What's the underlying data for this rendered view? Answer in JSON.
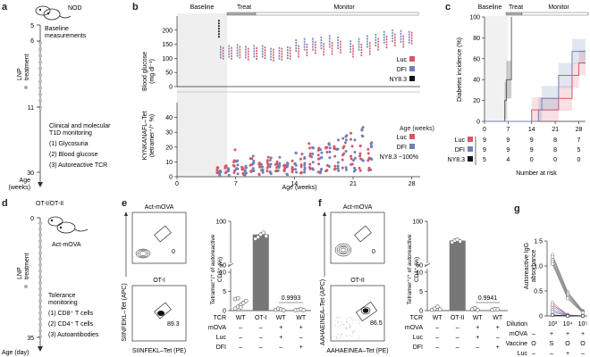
{
  "panel_labels": {
    "a": "a",
    "b": "b",
    "c": "c",
    "d": "d",
    "e": "e",
    "f": "f",
    "g": "g"
  },
  "panel_a": {
    "mouse_label": "NOD",
    "ticks": [
      "5",
      "6",
      "11",
      "30"
    ],
    "axis_label": "Age\n(weeks)",
    "axis_label_line1": "Age",
    "axis_label_line2": "(weeks)",
    "legend_label_line1": "LNP",
    "legend_label_line2": "treatment",
    "step1_line1": "Baseline",
    "step1_line2": "measurements",
    "step2_line1": "Clinical and molecular",
    "step2_line2": "T1D monitoring",
    "items": [
      "(1) Glycosuria",
      "(2) Blood glucose",
      "(3) Autoreactive TCR"
    ]
  },
  "panel_d": {
    "mouse_top_label": "OT-I/OT-II",
    "mouse_label": "Act-mOVA",
    "ticks": [
      "0",
      "35"
    ],
    "axis_label": "Age (day)",
    "legend_label_line1": "LNP",
    "legend_label_line2": "treatment",
    "step_line1": "Tolerance",
    "step_line2": "monitoring",
    "items": [
      "(1) CD8⁺ T cells",
      "(2) CD4⁺ T cells",
      "(3) Autoantibodies"
    ]
  },
  "phases": {
    "baseline": "Baseline",
    "treat": "Treat",
    "monitor": "Monitor"
  },
  "colors": {
    "luc": "#d9546a",
    "dfi": "#6f80b4",
    "ny83": "#111111",
    "bar": "#777777",
    "baseline_bg": "#efefef"
  },
  "chart_data": [
    {
      "id": "b_top",
      "type": "scatter",
      "title": "",
      "ylabel": "Blood glucose (mg dl⁻¹)",
      "ylabel_line1": "Blood glucose",
      "ylabel_line2": "(mg dl⁻¹)",
      "ylim": [
        0,
        250
      ],
      "yticks": [
        "0",
        "50",
        "100",
        "150",
        "200"
      ],
      "xlim": [
        0,
        29
      ],
      "legend": [
        "Luc",
        "DFI",
        "NY8.3"
      ],
      "legend_position": "right",
      "series": [
        {
          "name": "NY8.3",
          "x": [
            5
          ],
          "y": [
            205
          ]
        },
        {
          "name": "Luc",
          "x": [
            5.5,
            6.5,
            7.5,
            8.5,
            9.5,
            10.5,
            11.5,
            12.5,
            13.5,
            14.5,
            15.5,
            16.5,
            17.5,
            18.5,
            19.5,
            21,
            22,
            23,
            24,
            25,
            26,
            27,
            28
          ],
          "y": [
            118,
            118,
            122,
            115,
            117,
            120,
            112,
            115,
            118,
            125,
            130,
            138,
            132,
            135,
            140,
            125,
            130,
            135,
            150,
            158,
            165,
            160,
            172
          ]
        },
        {
          "name": "DFI",
          "x": [
            5.2,
            6.2,
            7.2,
            8.2,
            9.2,
            10.2,
            11.2,
            12.2,
            13.2,
            14.2,
            15.2,
            16.2,
            17.2,
            18.2,
            19.2,
            20.7,
            21.7,
            22.7,
            23.7,
            24.7,
            25.7,
            26.7,
            27.7
          ],
          "y": [
            122,
            125,
            128,
            122,
            125,
            125,
            115,
            118,
            120,
            145,
            150,
            150,
            155,
            160,
            155,
            142,
            150,
            160,
            165,
            175,
            180,
            178,
            175
          ]
        }
      ]
    },
    {
      "id": "b_bottom",
      "type": "scatter",
      "ylabel": "KYNKANAFL–Tet (tetramer⁺/⁺ %)",
      "ylabel_line1": "KYNKANAFL–Tet",
      "ylabel_line2": "(tetramer⁺/⁺ %)",
      "xlabel": "Age (weeks)",
      "ylim": [
        0,
        50
      ],
      "yticks": [
        "0",
        "10",
        "20",
        "30",
        "40"
      ],
      "xlim": [
        0,
        29
      ],
      "xticks": [
        "0",
        "7",
        "14",
        "21",
        "28"
      ],
      "legend": [
        "Luc",
        "DFI",
        "NY8.3 ~100%"
      ],
      "legend_position": "right",
      "series": [
        {
          "name": "Luc",
          "x": [
            5,
            6,
            7,
            8,
            9,
            10,
            11,
            12,
            13,
            14,
            15,
            16,
            17,
            18,
            19,
            20,
            21,
            22,
            23
          ],
          "y": [
            4,
            5,
            12,
            5,
            8,
            6,
            9,
            7,
            5,
            10,
            12,
            14,
            13,
            16,
            18,
            22,
            20,
            17,
            12
          ]
        },
        {
          "name": "DFI",
          "x": [
            5,
            6,
            7,
            8,
            9,
            10,
            11,
            12,
            13,
            14,
            15,
            16,
            17,
            18,
            19,
            20,
            21,
            22,
            23
          ],
          "y": [
            3,
            4,
            7,
            5,
            9,
            6,
            8,
            9,
            6,
            12,
            10,
            13,
            12,
            15,
            16,
            20,
            18,
            22,
            15
          ]
        }
      ]
    },
    {
      "id": "c",
      "type": "line",
      "title": "",
      "ylabel": "Diabetes incidence (%)",
      "xlabel": "Number at risk",
      "ylim": [
        0,
        100
      ],
      "yticks": [
        "0",
        "20",
        "40",
        "60",
        "80",
        "100"
      ],
      "xlim": [
        0,
        30
      ],
      "xticks": [
        "0",
        "7",
        "14",
        "21",
        "28"
      ],
      "risk_label": "Age (weeks)",
      "series": [
        {
          "name": "NY8.3",
          "x": [
            0,
            6,
            6,
            6.5,
            6.5,
            7,
            7,
            8,
            8
          ],
          "y": [
            0,
            0,
            20,
            20,
            40,
            40,
            40,
            40,
            100
          ]
        },
        {
          "name": "Luc",
          "x": [
            0,
            14,
            14,
            16,
            16,
            22,
            22,
            26,
            26,
            28,
            28,
            30
          ],
          "y": [
            0,
            0,
            11,
            11,
            11,
            11,
            22,
            22,
            44,
            44,
            56,
            56
          ]
        },
        {
          "name": "DFI",
          "x": [
            0,
            16,
            16,
            17,
            17,
            22,
            22,
            26,
            26,
            30
          ],
          "y": [
            0,
            0,
            11,
            11,
            22,
            22,
            44,
            44,
            67,
            67
          ]
        }
      ],
      "risk_table": {
        "timepoints": [
          "0",
          "7",
          "14",
          "21",
          "28"
        ],
        "rows": [
          {
            "name": "Luc",
            "values": [
              "9",
              "9",
              "9",
              "8",
              "7"
            ]
          },
          {
            "name": "DFI",
            "values": [
              "9",
              "9",
              "9",
              "8",
              "5"
            ]
          },
          {
            "name": "NY8.3",
            "values": [
              "5",
              "4",
              "0",
              "0",
              "0"
            ]
          }
        ]
      }
    },
    {
      "id": "e_bar",
      "type": "bar",
      "ylabel": "Tetramer⁺/⁺ of autoreactive CD8⁺ (%)",
      "ylabel_line1": "Tetramer⁺/⁺ of autoreactive",
      "ylabel_line2": "CD8⁺ (%)",
      "yticks": [
        "0",
        "5",
        "10",
        "50",
        "100"
      ],
      "categories": [
        "WT",
        "OT-I",
        "WT",
        "WT"
      ],
      "values": [
        1.5,
        85,
        0.3,
        0.2
      ],
      "points": [
        [
          0.5,
          1,
          1.5,
          2,
          2.5,
          3,
          3.2,
          0.8
        ],
        [
          80,
          82,
          85,
          87,
          83
        ],
        [
          0.2,
          0.5,
          0.3,
          0.1
        ],
        [
          0.1,
          0.2,
          0.3,
          0.1
        ]
      ],
      "pvalue": "0.9993",
      "conditions": {
        "labels": [
          "TCR",
          "mOVA",
          "Luc",
          "DFI"
        ],
        "rows": [
          [
            "WT",
            "OT-I",
            "WT",
            "WT"
          ],
          [
            "–",
            "–",
            "+",
            "+"
          ],
          [
            "–",
            "–",
            "+",
            "–"
          ],
          [
            "–",
            "–",
            "–",
            "+"
          ]
        ]
      }
    },
    {
      "id": "f_bar",
      "type": "bar",
      "ylabel": "Tetramer⁺/⁺ of autoreactive CD4⁺ (%)",
      "ylabel_line1": "Tetramer⁺/⁺ of autoreactive",
      "ylabel_line2": "CD4⁺ (%)",
      "yticks": [
        "0",
        "5",
        "10",
        "50",
        "100"
      ],
      "categories": [
        "WT",
        "OT-II",
        "WT",
        "WT"
      ],
      "values": [
        0.5,
        78,
        0.4,
        0.3
      ],
      "points": [
        [
          0.2,
          0.5,
          1,
          0.3
        ],
        [
          76,
          78,
          79,
          77
        ],
        [
          0.3,
          0.6,
          0.2
        ],
        [
          0.2,
          0.4,
          0.3
        ]
      ],
      "pvalue": "0.9941",
      "conditions": {
        "labels": [
          "TCR",
          "mOVA",
          "Luc",
          "DFI"
        ],
        "rows": [
          [
            "WT",
            "OT-II",
            "WT",
            "WT"
          ],
          [
            "–",
            "–",
            "+",
            "+"
          ],
          [
            "–",
            "–",
            "+",
            "–"
          ],
          [
            "–",
            "–",
            "–",
            "+"
          ]
        ]
      }
    },
    {
      "id": "g",
      "type": "line",
      "ylabel": "Autoreactive IgG absorbance",
      "ylabel_line1": "Autoreactive IgG",
      "ylabel_line2": "absorbance",
      "ylim": [
        0,
        1.5
      ],
      "yticks": [
        "0",
        "0.5",
        "1.0",
        "1.5"
      ],
      "xticks": [
        "10³",
        "10⁴",
        "10⁵"
      ],
      "xlabel": "Dilution",
      "series": [
        {
          "name": "S",
          "color": "#888888",
          "values": [
            [
              1.22,
              0.48,
              0.1
            ],
            [
              1.18,
              0.45,
              0.09
            ],
            [
              1.12,
              0.42,
              0.08
            ],
            [
              1.08,
              0.38,
              0.07
            ],
            [
              1.04,
              0.35,
              0.06
            ]
          ]
        },
        {
          "name": "O",
          "color": "#9b9bc9",
          "values": [
            [
              0.27,
              0.02,
              0.0
            ],
            [
              0.18,
              0.01,
              0.0
            ]
          ]
        },
        {
          "name": "Luc",
          "color": "#d9546a",
          "values": [
            [
              0.22,
              0.02,
              0.0
            ]
          ]
        },
        {
          "name": "DFI",
          "color": "#6f80b4",
          "values": [
            [
              0.12,
              0.01,
              0.0
            ],
            [
              0.08,
              0.0,
              0.0
            ]
          ]
        },
        {
          "name": "baseline",
          "color": "#111111",
          "values": [
            [
              0.02,
              0.0,
              0.0
            ]
          ]
        }
      ],
      "conditions": {
        "labels": [
          "Dilution",
          "mOVA",
          "Vaccine",
          "Luc",
          "DFI"
        ],
        "rows": [
          [
            "",
            "",
            "",
            ""
          ],
          [
            "–",
            "+",
            "+",
            "+"
          ],
          [
            "O",
            "S",
            "O",
            "O"
          ],
          [
            "–",
            "–",
            "+",
            "–"
          ],
          [
            "–",
            "–",
            "–",
            "+"
          ]
        ]
      }
    }
  ],
  "flow_e": {
    "top_title": "Act-mOVA",
    "top_value": "0",
    "bottom_title": "OT-I",
    "bottom_value": "89.3",
    "xlabel": "SIINFEKL–Tet (PE)",
    "ylabel": "SIINFEKL–Tet (APC)"
  },
  "flow_f": {
    "top_title": "Act-mOVA",
    "top_value": "0",
    "bottom_title": "OT-II",
    "bottom_value": "86.5",
    "xlabel": "AAHAEINEA–Tet (PE)",
    "ylabel": "AAHAEINEA–Tet (APC)"
  }
}
